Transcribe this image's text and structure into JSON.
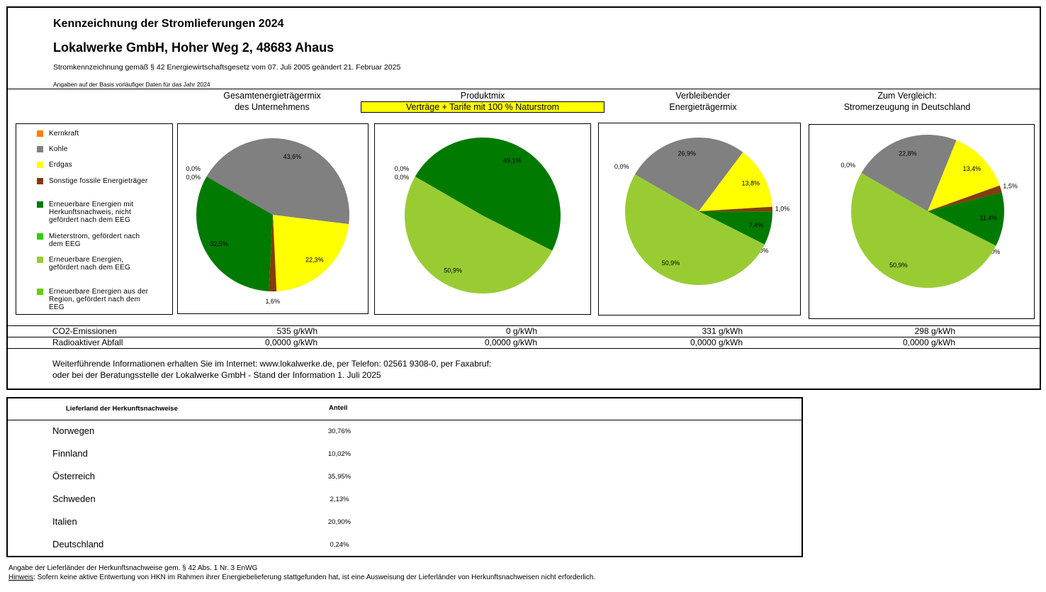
{
  "header": {
    "title": "Kennzeichnung der Stromlieferungen 2024",
    "company": "Lokalwerke GmbH, Hoher Weg 2, 48683 Ahaus",
    "legal": "Stromkennzeichnung gemäß § 42 Energiewirtschaftsgesetz vom 07. Juli 2005 geändert 21. Februar 2025",
    "basis": "Angaben auf der Basis vorläufiger Daten für das Jahr 2024"
  },
  "columns": [
    {
      "line1": "Gesamtenergieträgermix",
      "line2": "des Unternehmens"
    },
    {
      "line1": "Produktmix",
      "line2": "Verträge + Tarife mit 100 % Naturstrom"
    },
    {
      "line1": "Verbleibender",
      "line2": "Energieträgermix"
    },
    {
      "line1": "Zum Vergleich:",
      "line2": "Stromerzeugung in Deutschland"
    }
  ],
  "legend": [
    {
      "label": "Kernkraft",
      "color": "#ff8000"
    },
    {
      "label": "Kohle",
      "color": "#808080"
    },
    {
      "label": "Erdgas",
      "color": "#ffff00"
    },
    {
      "label": "Sonstige fossile Energieträger",
      "color": "#843c0c"
    },
    {
      "label": "Erneuerbare Energien mit Herkunftsnachweis, nicht gefördert nach dem EEG",
      "color": "#007a00"
    },
    {
      "label": "Mieterstrom, gefördert nach dem EEG",
      "color": "#33cc00"
    },
    {
      "label": "Erneuerbare Energien, gefördert nach dem EEG",
      "color": "#99cc33"
    },
    {
      "label": "Erneuerbare Energien aus der Region, gefördert nach dem EEG",
      "color": "#66cc00"
    }
  ],
  "chart_data": [
    {
      "type": "pie",
      "categories": [
        "Kernkraft",
        "Kohle",
        "Erdgas",
        "Sonstige fossile Energieträger",
        "Erneuerbare Energien mit Herkunftsnachweis, nicht gefördert nach dem EEG",
        "Mieterstrom, gefördert nach dem EEG",
        "Erneuerbare Energien, gefördert nach dem EEG",
        "Erneuerbare Energien aus der Region, gefördert nach dem EEG"
      ],
      "values": [
        0.0,
        43.6,
        22.3,
        1.6,
        32.5,
        0.0,
        0.0,
        0.0
      ],
      "labels": [
        "0,0%",
        "43,6%",
        "22,3%",
        "1,6%",
        "32,5%",
        "0,0%",
        null,
        null
      ]
    },
    {
      "type": "pie",
      "categories": [
        "Kernkraft",
        "Kohle",
        "Erdgas",
        "Sonstige fossile Energieträger",
        "Erneuerbare Energien mit Herkunftsnachweis, nicht gefördert nach dem EEG",
        "Mieterstrom, gefördert nach dem EEG",
        "Erneuerbare Energien, gefördert nach dem EEG",
        "Erneuerbare Energien aus der Region, gefördert nach dem EEG"
      ],
      "values": [
        0.0,
        0.0,
        0.0,
        0.0,
        49.1,
        0.0,
        50.9,
        0.0
      ],
      "labels": [
        "0,0%",
        "0,0%",
        null,
        null,
        "49,1%",
        null,
        "50,9%",
        null
      ]
    },
    {
      "type": "pie",
      "categories": [
        "Kernkraft",
        "Kohle",
        "Erdgas",
        "Sonstige fossile Energieträger",
        "Erneuerbare Energien mit Herkunftsnachweis, nicht gefördert nach dem EEG",
        "Mieterstrom, gefördert nach dem EEG",
        "Erneuerbare Energien, gefördert nach dem EEG",
        "Erneuerbare Energien aus der Region, gefördert nach dem EEG"
      ],
      "values": [
        0.0,
        26.9,
        13.8,
        1.0,
        7.4,
        0.0,
        50.9,
        0.0
      ],
      "labels": [
        "0,0%",
        "26,9%",
        "13,8%",
        "1,0%",
        "7,4%",
        "0,0%",
        "50,9%",
        null
      ]
    },
    {
      "type": "pie",
      "categories": [
        "Kernkraft",
        "Kohle",
        "Erdgas",
        "Sonstige fossile Energieträger",
        "Erneuerbare Energien mit Herkunftsnachweis, nicht gefördert nach dem EEG",
        "Mieterstrom, gefördert nach dem EEG",
        "Erneuerbare Energien, gefördert nach dem EEG",
        "Erneuerbare Energien aus der Region, gefördert nach dem EEG"
      ],
      "values": [
        0.0,
        22.8,
        13.4,
        1.5,
        11.4,
        0.0,
        50.9,
        0.0
      ],
      "labels": [
        "0,0%",
        "22,8%",
        "13,4%",
        "1,5%",
        "11,4%",
        "0,0%",
        "50,9%",
        null
      ]
    }
  ],
  "emissions": {
    "label": "CO2-Emissionen",
    "values": [
      "535 g/kWh",
      "0 g/kWh",
      "331 g/kWh",
      "298 g/kWh"
    ]
  },
  "waste": {
    "label": "Radioaktiver Abfall",
    "values": [
      "0,0000 g/kWh",
      "0,0000 g/kWh",
      "0,0000 g/kWh",
      "0,0000 g/kWh"
    ]
  },
  "info": {
    "line1": "Weiterführende Informationen erhalten Sie im Internet: www.lokalwerke.de, per Telefon: 02561 9308-0, per Faxabruf:",
    "line2": "oder bei der Beratungsstelle der Lokalwerke GmbH - Stand der Information 1. Juli 2025"
  },
  "hkn_table": {
    "headers": [
      "Lieferland der Herkunftsnachweise",
      "Anteil"
    ],
    "rows": [
      {
        "country": "Norwegen",
        "share": "30,76%"
      },
      {
        "country": "Finnland",
        "share": "10,02%"
      },
      {
        "country": "Österreich",
        "share": "35,95%"
      },
      {
        "country": "Schweden",
        "share": "2,13%"
      },
      {
        "country": "Italien",
        "share": "20,90%"
      },
      {
        "country": "Deutschland",
        "share": "0,24%"
      }
    ]
  },
  "footer": {
    "line1": "Angabe der Lieferländer der Herkunftsnachweise gem. § 42 Abs. 1 Nr. 3 EnWG",
    "hint_label": "Hinweis",
    "hint_text": ": Sofern keine aktive Entwertung von HKN im Rahmen ihrer Energiebelieferung stattgefunden hat, ist eine Ausweisung der Lieferländer von Herkunftsnachweisen nicht erforderlich."
  }
}
